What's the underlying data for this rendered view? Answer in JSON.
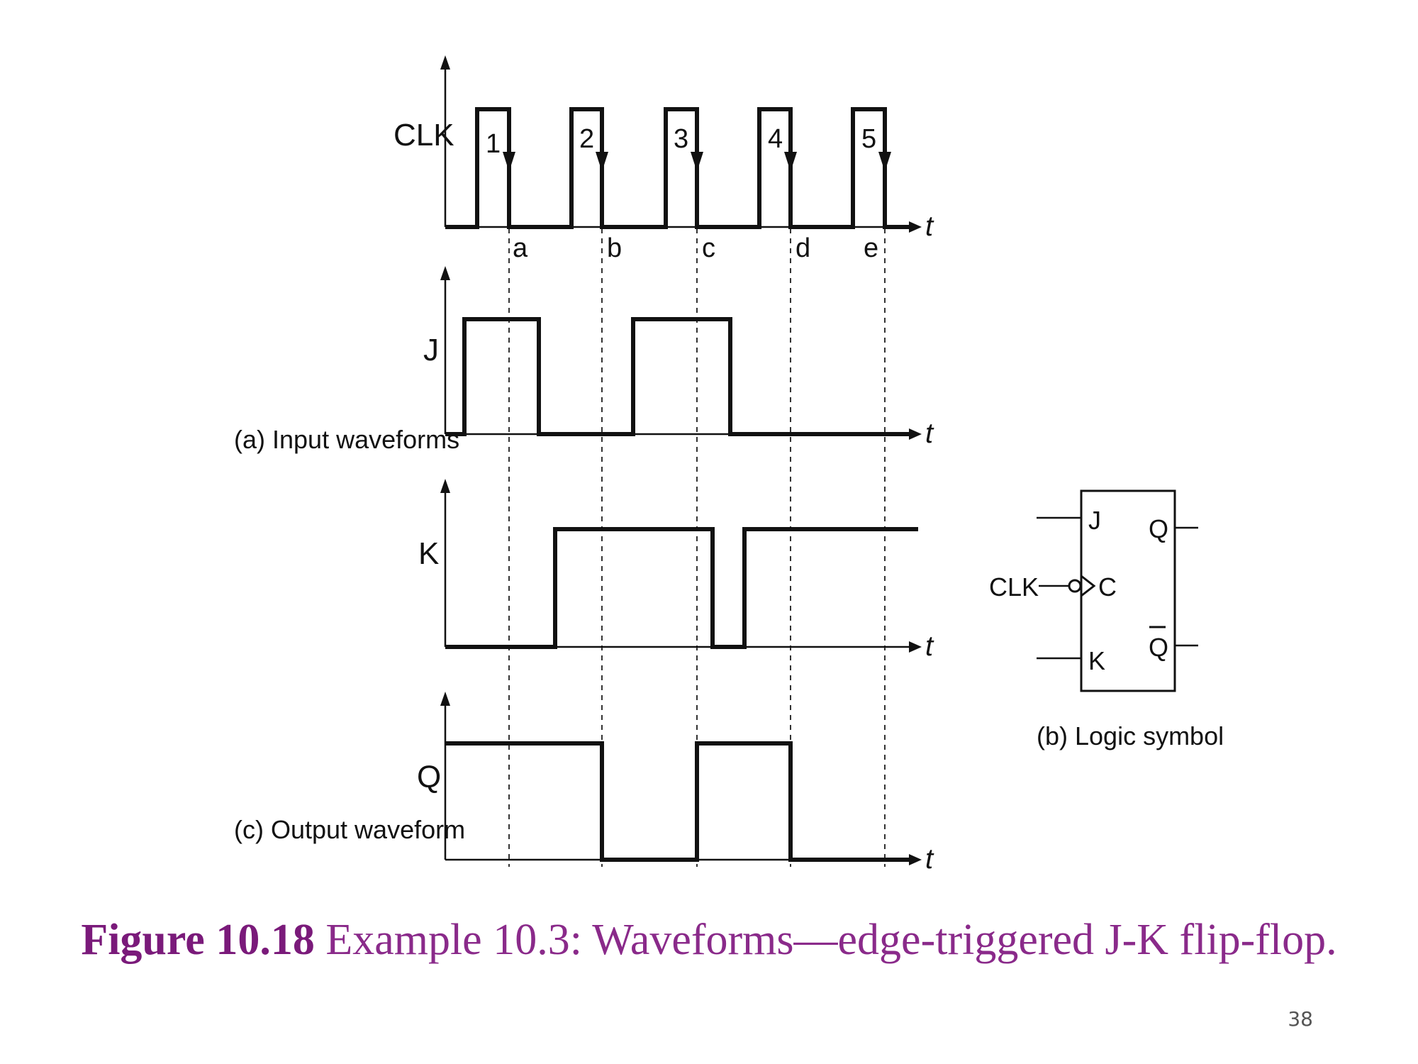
{
  "signals": {
    "clk": "CLK",
    "j": "J",
    "k": "K",
    "q": "Q",
    "t": "t"
  },
  "clock_pulses": [
    "1",
    "2",
    "3",
    "4",
    "5"
  ],
  "edge_labels": [
    "a",
    "b",
    "c",
    "d",
    "e"
  ],
  "section_labels": {
    "input": "(a) Input waveforms",
    "output": "(c) Output waveform",
    "logic": "(b) Logic symbol"
  },
  "logic_symbol": {
    "input_j": "J",
    "input_c": "C",
    "input_k": "K",
    "output_q": "Q",
    "output_qbar": "Q",
    "clk_label": "CLK"
  },
  "caption": {
    "figure": "Figure 10.18",
    "text": "Example 10.3: Waveforms—edge-triggered J-K flip-flop."
  },
  "page_number": "38"
}
